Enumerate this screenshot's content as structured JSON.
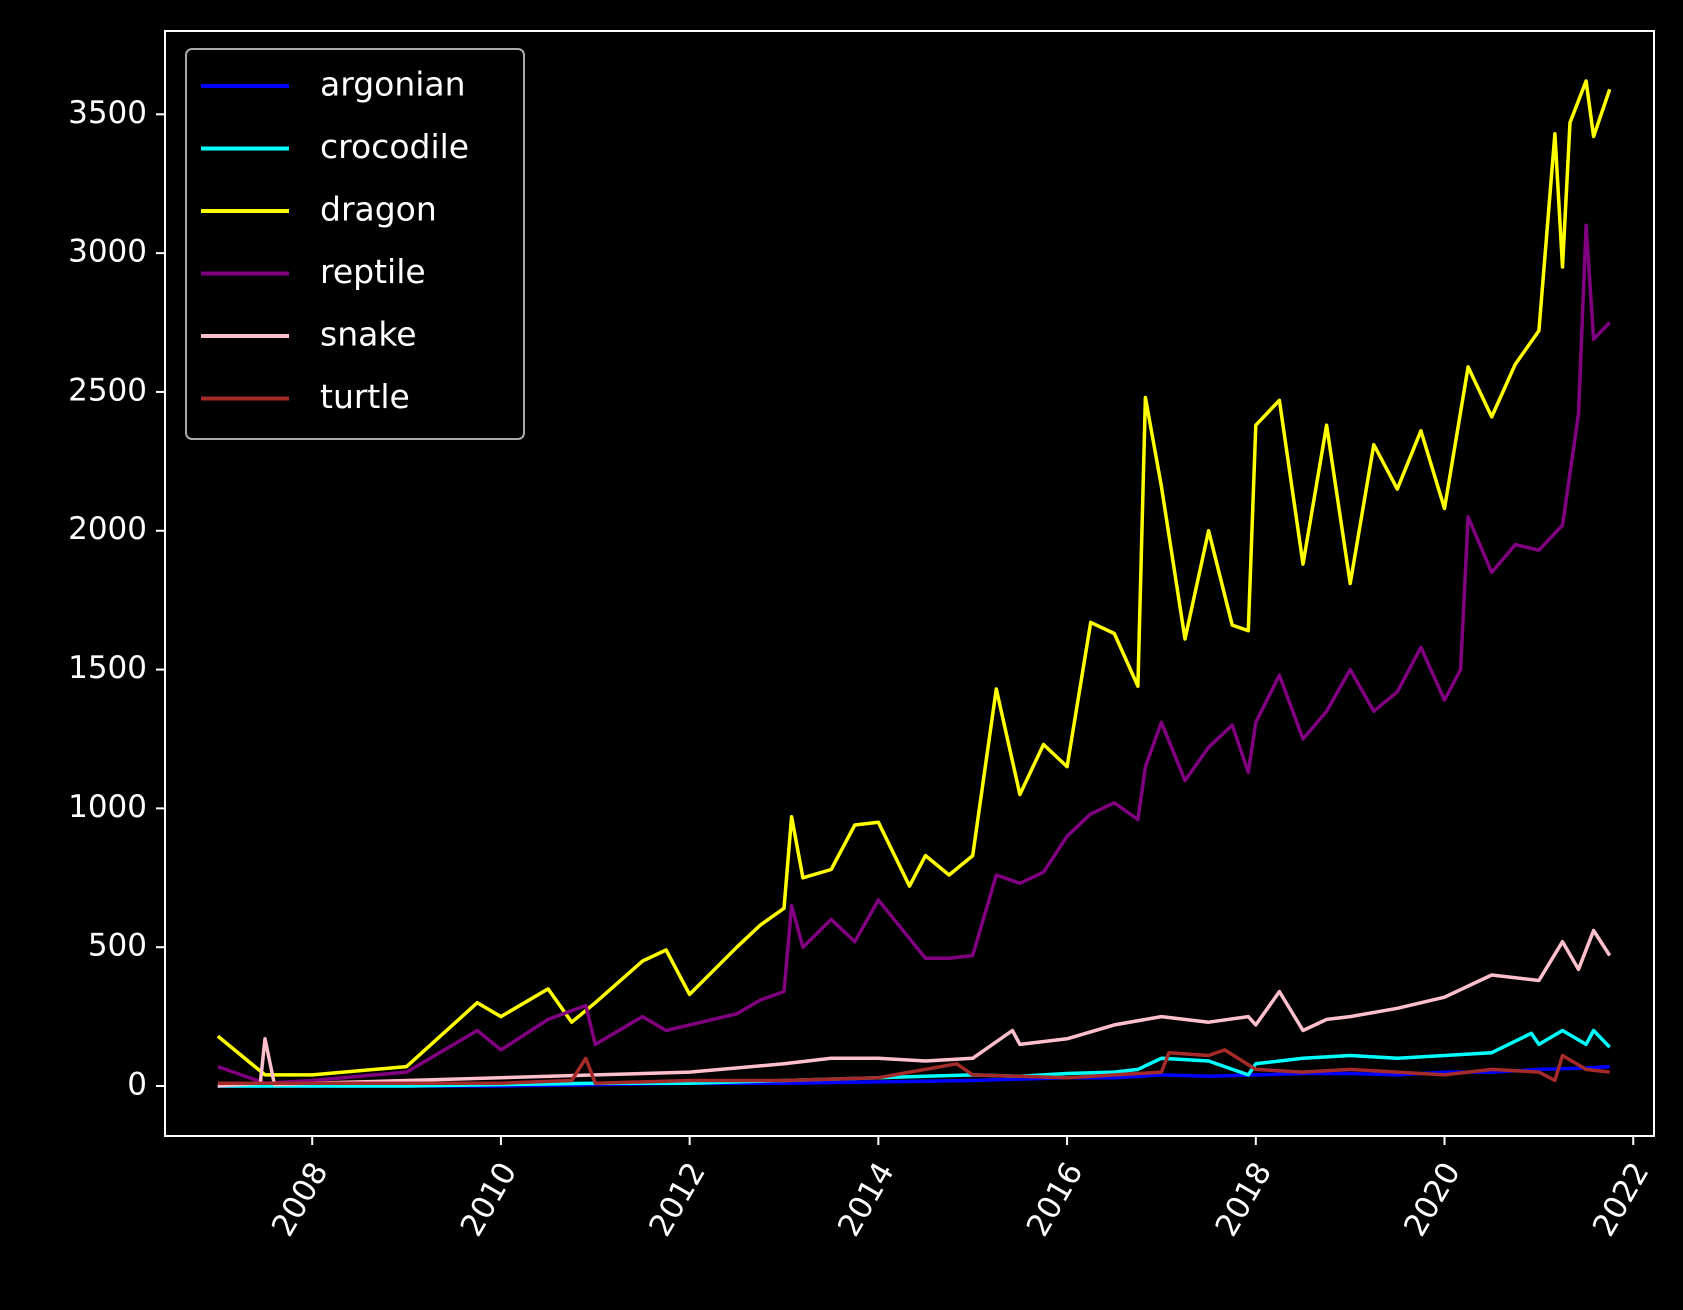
{
  "chart_data": {
    "type": "line",
    "title": "",
    "xlabel": "",
    "ylabel": "",
    "xlim": [
      2006.44,
      2022.22
    ],
    "ylim": [
      -180,
      3800
    ],
    "x_ticks": [
      2008,
      2010,
      2012,
      2014,
      2016,
      2018,
      2020,
      2022
    ],
    "x_tick_labels": [
      "2008",
      "2010",
      "2012",
      "2014",
      "2016",
      "2018",
      "2020",
      "2022"
    ],
    "y_ticks": [
      0,
      500,
      1000,
      1500,
      2000,
      2500,
      3000,
      3500
    ],
    "y_tick_labels": [
      "0",
      "500",
      "1000",
      "1500",
      "2000",
      "2500",
      "3000",
      "3500"
    ],
    "x_tick_rotation_deg": 60,
    "grid": false,
    "background": "#000000",
    "foreground": "#ffffff",
    "legend_position": "top-left",
    "series": [
      {
        "name": "argonian",
        "color": "#0000ff",
        "x": [
          2007.0,
          2008.0,
          2009.0,
          2010.0,
          2011.0,
          2012.0,
          2013.0,
          2014.0,
          2015.0,
          2015.5,
          2016.0,
          2016.5,
          2017.0,
          2017.5,
          2018.0,
          2018.5,
          2019.0,
          2019.5,
          2020.0,
          2020.5,
          2021.0,
          2021.5,
          2021.75
        ],
        "y": [
          0,
          0,
          0,
          0,
          5,
          10,
          10,
          15,
          20,
          25,
          30,
          30,
          40,
          35,
          40,
          45,
          45,
          40,
          50,
          50,
          60,
          65,
          70
        ]
      },
      {
        "name": "crocodile",
        "color": "#00ffff",
        "x": [
          2007.0,
          2008.0,
          2009.0,
          2010.0,
          2011.0,
          2012.0,
          2012.5,
          2013.0,
          2013.5,
          2014.0,
          2014.5,
          2015.0,
          2015.5,
          2016.0,
          2016.5,
          2016.75,
          2017.0,
          2017.5,
          2017.92,
          2018.0,
          2018.5,
          2019.0,
          2019.5,
          2020.0,
          2020.5,
          2020.92,
          2021.0,
          2021.25,
          2021.5,
          2021.58,
          2021.75
        ],
        "y": [
          0,
          0,
          0,
          5,
          10,
          10,
          15,
          20,
          25,
          30,
          35,
          40,
          35,
          45,
          50,
          60,
          100,
          90,
          40,
          80,
          100,
          110,
          100,
          110,
          120,
          190,
          150,
          200,
          150,
          200,
          140
        ]
      },
      {
        "name": "dragon",
        "color": "#ffff00",
        "x": [
          2007.0,
          2007.5,
          2008.0,
          2009.0,
          2009.75,
          2010.0,
          2010.5,
          2010.75,
          2011.0,
          2011.5,
          2011.75,
          2012.0,
          2012.5,
          2012.75,
          2013.0,
          2013.08,
          2013.2,
          2013.5,
          2013.75,
          2014.0,
          2014.33,
          2014.5,
          2014.75,
          2015.0,
          2015.25,
          2015.5,
          2015.75,
          2016.0,
          2016.25,
          2016.5,
          2016.75,
          2016.83,
          2017.0,
          2017.25,
          2017.5,
          2017.75,
          2017.92,
          2018.0,
          2018.25,
          2018.5,
          2018.75,
          2019.0,
          2019.25,
          2019.5,
          2019.75,
          2020.0,
          2020.25,
          2020.5,
          2020.75,
          2021.0,
          2021.17,
          2021.25,
          2021.33,
          2021.5,
          2021.58,
          2021.75
        ],
        "y": [
          180,
          40,
          40,
          70,
          300,
          250,
          350,
          230,
          300,
          450,
          490,
          330,
          500,
          580,
          640,
          970,
          750,
          780,
          940,
          950,
          720,
          830,
          760,
          830,
          1430,
          1050,
          1230,
          1150,
          1670,
          1630,
          1440,
          2480,
          2160,
          1610,
          2000,
          1660,
          1640,
          2380,
          2470,
          1880,
          2380,
          1810,
          2310,
          2150,
          2360,
          2080,
          2590,
          2410,
          2600,
          2720,
          3430,
          2950,
          3470,
          3620,
          3420,
          3590
        ]
      },
      {
        "name": "reptile",
        "color": "#800080",
        "x": [
          2007.0,
          2007.5,
          2008.0,
          2009.0,
          2009.75,
          2010.0,
          2010.5,
          2010.9,
          2011.0,
          2011.5,
          2011.75,
          2012.0,
          2012.5,
          2012.75,
          2013.0,
          2013.08,
          2013.2,
          2013.5,
          2013.75,
          2014.0,
          2014.5,
          2014.75,
          2015.0,
          2015.25,
          2015.5,
          2015.75,
          2016.0,
          2016.25,
          2016.5,
          2016.75,
          2016.83,
          2017.0,
          2017.25,
          2017.5,
          2017.75,
          2017.92,
          2018.0,
          2018.25,
          2018.5,
          2018.75,
          2019.0,
          2019.25,
          2019.5,
          2019.75,
          2020.0,
          2020.17,
          2020.25,
          2020.5,
          2020.75,
          2021.0,
          2021.25,
          2021.42,
          2021.5,
          2021.58,
          2021.75
        ],
        "y": [
          70,
          10,
          20,
          50,
          200,
          130,
          240,
          290,
          150,
          250,
          200,
          220,
          260,
          310,
          340,
          650,
          500,
          600,
          520,
          670,
          460,
          460,
          470,
          760,
          730,
          770,
          900,
          980,
          1020,
          960,
          1150,
          1310,
          1100,
          1220,
          1300,
          1130,
          1310,
          1480,
          1250,
          1350,
          1500,
          1350,
          1420,
          1580,
          1390,
          1500,
          2050,
          1850,
          1950,
          1930,
          2020,
          2420,
          3100,
          2690,
          2750
        ]
      },
      {
        "name": "snake",
        "color": "#ffc0cb",
        "x": [
          2007.0,
          2007.45,
          2007.5,
          2007.6,
          2008.0,
          2009.0,
          2010.0,
          2011.0,
          2012.0,
          2013.0,
          2013.5,
          2014.0,
          2014.5,
          2015.0,
          2015.42,
          2015.5,
          2016.0,
          2016.5,
          2017.0,
          2017.5,
          2017.92,
          2018.0,
          2018.25,
          2018.5,
          2018.75,
          2019.0,
          2019.5,
          2020.0,
          2020.5,
          2021.0,
          2021.25,
          2021.42,
          2021.58,
          2021.75
        ],
        "y": [
          0,
          10,
          170,
          5,
          10,
          20,
          30,
          40,
          50,
          80,
          100,
          100,
          90,
          100,
          200,
          150,
          170,
          220,
          250,
          230,
          250,
          220,
          340,
          200,
          240,
          250,
          280,
          320,
          400,
          380,
          520,
          420,
          560,
          470
        ]
      },
      {
        "name": "turtle",
        "color": "#a52a2a",
        "x": [
          2007.0,
          2008.0,
          2009.0,
          2010.0,
          2010.75,
          2010.9,
          2011.0,
          2012.0,
          2013.0,
          2014.0,
          2014.83,
          2015.0,
          2016.0,
          2016.5,
          2017.0,
          2017.08,
          2017.5,
          2017.67,
          2018.0,
          2018.5,
          2019.0,
          2019.5,
          2020.0,
          2020.5,
          2021.0,
          2021.17,
          2021.25,
          2021.5,
          2021.75
        ],
        "y": [
          10,
          10,
          10,
          10,
          20,
          100,
          10,
          20,
          20,
          30,
          80,
          40,
          30,
          40,
          50,
          120,
          110,
          130,
          60,
          50,
          60,
          50,
          40,
          60,
          50,
          20,
          110,
          60,
          50
        ]
      }
    ]
  }
}
